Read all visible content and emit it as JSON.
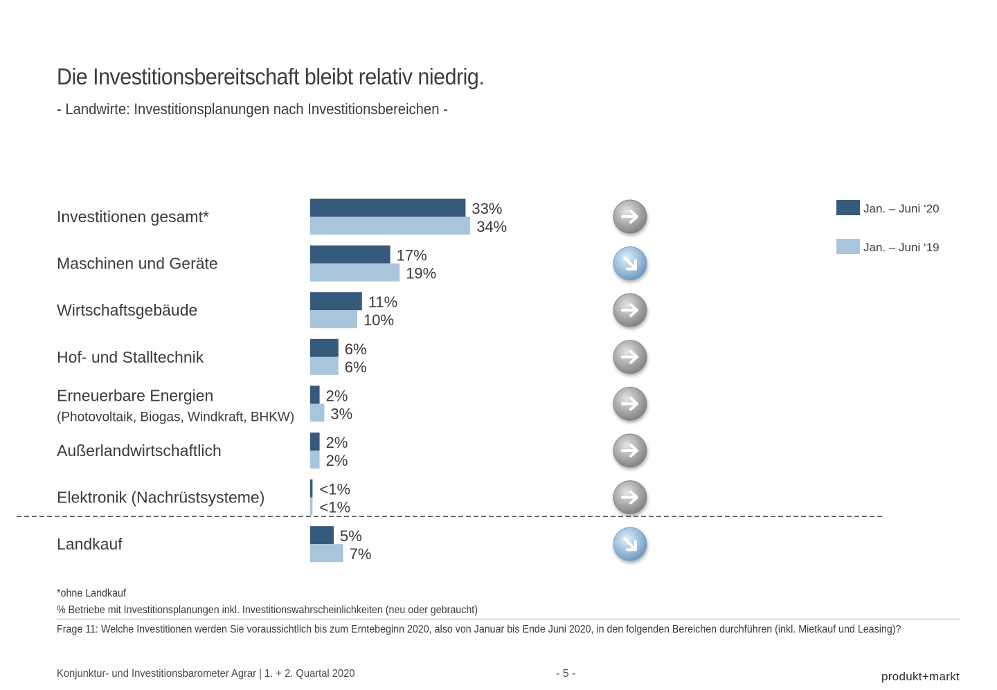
{
  "header": {
    "title": "Die Investitionsbereitschaft bleibt relativ niedrig.",
    "subtitle": "- Landwirte: Investitionsplanungen nach Investitionsbereichen -"
  },
  "chart_data": {
    "type": "bar",
    "orientation": "horizontal",
    "categories": [
      "Investitionen gesamt*",
      "Maschinen und Geräte",
      "Wirtschaftsgebäude",
      "Hof- und Stalltechnik",
      "Erneuerbare Energien",
      "Außerlandwirtschaftlich",
      "Elektronik (Nachrüstsysteme)",
      "Landkauf"
    ],
    "category_sublabels": [
      "",
      "",
      "",
      "",
      "(Photovoltaik, Biogas, Windkraft, BHKW)",
      "",
      "",
      ""
    ],
    "series": [
      {
        "name": "Jan. – Juni ‘20",
        "color": "#365a7c",
        "values": [
          33,
          17,
          11,
          6,
          2,
          2,
          0.5,
          5
        ],
        "labels": [
          "33%",
          "17%",
          "11%",
          "6%",
          "2%",
          "2%",
          "<1%",
          "5%"
        ]
      },
      {
        "name": "Jan. – Juni ‘19",
        "color": "#a9c5dc",
        "values": [
          34,
          19,
          10,
          6,
          3,
          2,
          0.5,
          7
        ],
        "labels": [
          "34%",
          "19%",
          "10%",
          "6%",
          "3%",
          "2%",
          "<1%",
          "7%"
        ]
      }
    ],
    "trend_icons": [
      "right",
      "down-right",
      "right",
      "right",
      "right",
      "right",
      "right",
      "down-right"
    ],
    "legend_position": "top-right",
    "separator_before_index": 7,
    "xlim": [
      0,
      34
    ]
  },
  "footnotes": {
    "note1": "*ohne Landkauf",
    "note2": "% Betriebe mit Investitionsplanungen inkl. Investitionswahrscheinlichkeiten (neu oder gebraucht)",
    "question": "Frage 11: Welche Investitionen werden Sie voraussichtlich bis zum Erntebeginn 2020, also von Januar bis Ende Juni 2020, in den folgenden Bereichen durchführen (inkl. Mietkauf und Leasing)?"
  },
  "footer": {
    "source": "Konjunktur- und Investitionsbarometer Agrar | 1. + 2. Quartal 2020",
    "page": "- 5 -",
    "brand": "produkt+markt"
  }
}
